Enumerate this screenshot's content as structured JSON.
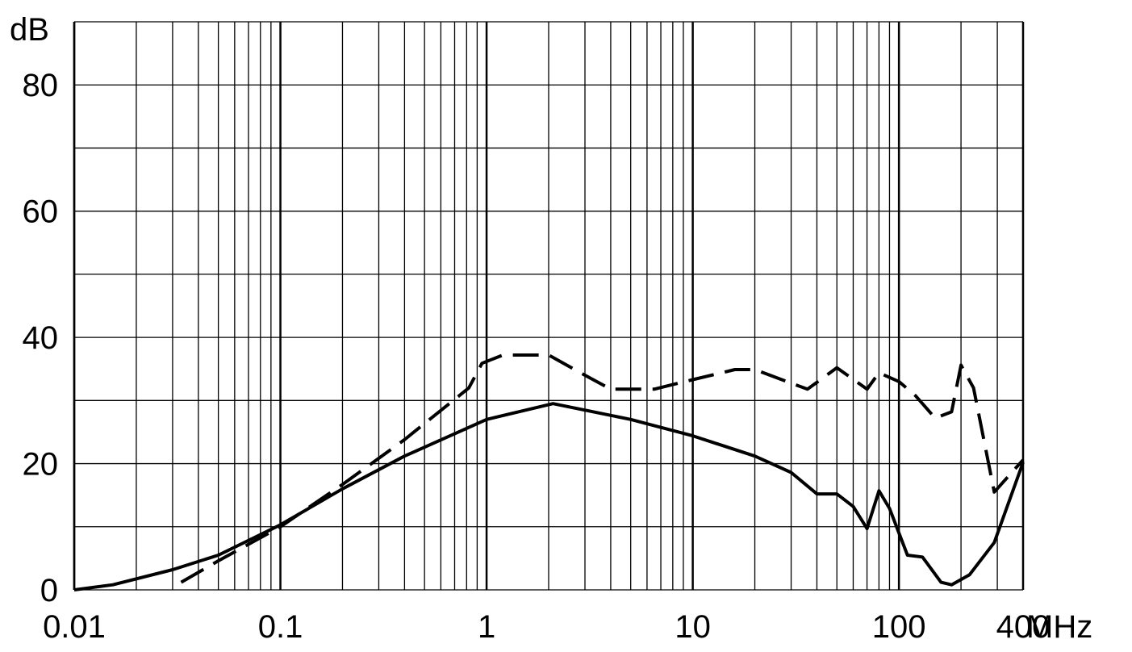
{
  "chart_data": {
    "type": "line",
    "y_label": "dB",
    "x_label": "MHz",
    "xscale": "log",
    "xlim": [
      0.01,
      400
    ],
    "xticks": [
      0.01,
      0.1,
      1,
      10,
      100,
      400
    ],
    "ylim": [
      0,
      90
    ],
    "yticks": [
      0,
      20,
      40,
      60,
      80
    ],
    "y_minor_ticks": [
      10,
      30,
      50,
      70
    ],
    "grid": true,
    "minor_grid": true,
    "series": [
      {
        "color": "#000000",
        "dashed": false,
        "x": [
          0.01,
          0.0154,
          0.03,
          0.05,
          0.1,
          0.2,
          0.4,
          1,
          2.1,
          5,
          10,
          20,
          30,
          40,
          50,
          60,
          70,
          80,
          90,
          100,
          110,
          130,
          160,
          180,
          220,
          290,
          400
        ],
        "values": [
          0,
          0.8,
          3.2,
          5.5,
          10.3,
          16,
          21.2,
          27,
          29.5,
          27,
          24.4,
          21.2,
          18.6,
          15.2,
          15.2,
          13.2,
          9.7,
          15.7,
          12.9,
          9,
          5.5,
          5.2,
          1.2,
          0.8,
          2.4,
          7.5,
          20.2
        ]
      },
      {
        "color": "#000000",
        "dashed": true,
        "x": [
          0.033,
          0.05,
          0.1,
          0.2,
          0.4,
          0.82,
          0.95,
          1.2,
          2,
          3,
          4,
          6.5,
          10,
          16,
          20,
          36,
          50,
          70,
          80,
          100,
          120,
          150,
          180,
          200,
          230,
          290,
          400
        ],
        "values": [
          1.2,
          4.6,
          10,
          16.7,
          23.8,
          32,
          35.9,
          37.2,
          37.2,
          34,
          31.8,
          31.8,
          33.3,
          34.9,
          34.9,
          31.8,
          35.2,
          31.8,
          34.4,
          33,
          30.8,
          27.2,
          28.2,
          35.6,
          32,
          15.5,
          20.6
        ]
      }
    ]
  }
}
